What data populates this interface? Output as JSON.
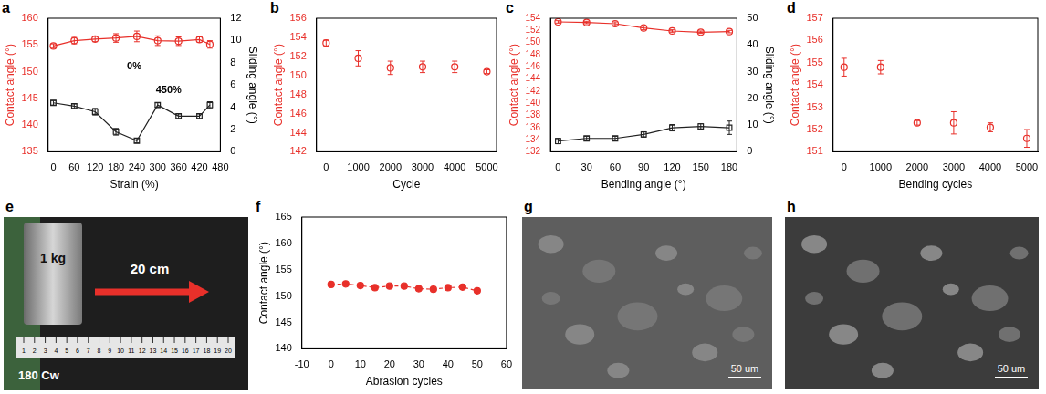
{
  "chart_data": [
    {
      "panel": "a",
      "type": "line",
      "x_label": "Strain (%)",
      "y_label": "Contact angle (°)",
      "y2_label": "Sliding angle (°)",
      "x": [
        0,
        60,
        120,
        180,
        240,
        300,
        360,
        420,
        450
      ],
      "xlim": [
        -15,
        480
      ],
      "xticks": [
        0,
        60,
        120,
        180,
        240,
        300,
        360,
        420,
        480
      ],
      "ylim": [
        135,
        160
      ],
      "yticks": [
        135,
        140,
        145,
        150,
        155,
        160
      ],
      "y2lim": [
        0,
        12
      ],
      "y2ticks": [
        0,
        2,
        4,
        6,
        8,
        10,
        12
      ],
      "grid": false,
      "annotations": [
        "0%",
        "450%"
      ],
      "series": [
        {
          "color": "#e8302a",
          "marker": "open_circle",
          "line_style": "solid",
          "values": [
            154.8,
            155.8,
            156.1,
            156.3,
            156.6,
            155.8,
            155.7,
            156.0,
            155.1
          ],
          "errors": [
            0.4,
            0.6,
            0.5,
            0.8,
            1.0,
            0.9,
            0.8,
            0.5,
            0.7
          ]
        },
        {
          "axis": "y2",
          "color": "#222222",
          "marker": "open_square",
          "line_style": "solid",
          "values": [
            4.4,
            4.1,
            3.6,
            1.8,
            1.0,
            4.2,
            3.2,
            3.2,
            4.2
          ],
          "errors": [
            0.2,
            0.2,
            0.3,
            0.3,
            0.2,
            0.2,
            0.2,
            0.2,
            0.3
          ]
        }
      ]
    },
    {
      "panel": "b",
      "type": "scatter",
      "x_label": "Cycle",
      "y_label": "Contact angle (°)",
      "x": [
        0,
        1000,
        2000,
        3000,
        4000,
        5000
      ],
      "xlim": [
        -300,
        5300
      ],
      "xticks": [
        0,
        1000,
        2000,
        3000,
        4000,
        5000
      ],
      "ylim": [
        142,
        156
      ],
      "yticks": [
        142,
        144,
        146,
        148,
        150,
        152,
        154,
        156
      ],
      "grid": false,
      "series": [
        {
          "color": "#e8302a",
          "marker": "open_circle",
          "line_style": "none",
          "values": [
            153.4,
            151.8,
            150.8,
            150.9,
            150.9,
            150.4
          ],
          "errors": [
            0.3,
            0.8,
            0.7,
            0.6,
            0.6,
            0.2
          ]
        }
      ]
    },
    {
      "panel": "c",
      "type": "line",
      "x_label": "Bending angle (°)",
      "y_label": "Contact angle (°)",
      "y2_label": "Sliding angle (°)",
      "x": [
        0,
        30,
        60,
        90,
        120,
        150,
        180
      ],
      "xlim": [
        -8,
        188
      ],
      "xticks": [
        0,
        30,
        60,
        90,
        120,
        150,
        180
      ],
      "ylim": [
        132,
        154
      ],
      "yticks": [
        132,
        134,
        136,
        138,
        140,
        142,
        144,
        146,
        148,
        150,
        152,
        154
      ],
      "y2lim": [
        0,
        50
      ],
      "y2ticks": [
        0,
        10,
        20,
        30,
        40,
        50
      ],
      "grid": false,
      "series": [
        {
          "color": "#e8302a",
          "marker": "open_circle",
          "line_style": "solid",
          "values": [
            153.4,
            153.3,
            153.1,
            152.4,
            151.9,
            151.7,
            151.8
          ],
          "errors": [
            0.2,
            0.2,
            0.3,
            0.3,
            0.2,
            0.2,
            0.2
          ]
        },
        {
          "axis": "y2",
          "color": "#222222",
          "marker": "open_square",
          "line_style": "solid",
          "values": [
            4,
            5,
            5,
            6.5,
            9,
            9.5,
            9
          ],
          "errors": [
            1.0,
            0.8,
            0.8,
            1.0,
            1.2,
            1.0,
            2.5
          ]
        }
      ]
    },
    {
      "panel": "d",
      "type": "scatter",
      "x_label": "Bending cycles",
      "y_label": "Contact angle (°)",
      "x": [
        0,
        1000,
        2000,
        3000,
        4000,
        5000
      ],
      "xlim": [
        -300,
        5300
      ],
      "xticks": [
        0,
        1000,
        2000,
        3000,
        4000,
        5000
      ],
      "ylim": [
        151,
        157
      ],
      "yticks": [
        151,
        152,
        153,
        154,
        155,
        156,
        157
      ],
      "grid": false,
      "series": [
        {
          "color": "#e8302a",
          "marker": "open_circle",
          "line_style": "none",
          "values": [
            154.8,
            154.8,
            152.3,
            152.3,
            152.1,
            151.6
          ],
          "errors": [
            0.4,
            0.3,
            0.1,
            0.5,
            0.2,
            0.4
          ]
        }
      ]
    },
    {
      "panel": "f",
      "type": "line",
      "x_label": "Abrasion cycles",
      "y_label": "Contact angle (°)",
      "x": [
        0,
        5,
        10,
        15,
        20,
        25,
        30,
        35,
        40,
        45,
        50
      ],
      "xlim": [
        -10,
        60
      ],
      "xticks": [
        -10,
        0,
        10,
        20,
        30,
        40,
        50,
        60
      ],
      "ylim": [
        140,
        165
      ],
      "yticks": [
        140,
        145,
        150,
        155,
        160,
        165
      ],
      "grid": false,
      "series": [
        {
          "color": "#e8302a",
          "marker": "circle",
          "line_style": "dashed",
          "values": [
            152.2,
            152.3,
            152.0,
            151.6,
            151.9,
            151.9,
            151.4,
            151.3,
            151.6,
            151.7,
            151.0
          ]
        }
      ]
    }
  ],
  "images": [
    {
      "panel": "e",
      "type": "photo",
      "texts": [
        "1 kg",
        "20 cm",
        "180 Cw"
      ],
      "ruler_labels": [
        1,
        2,
        3,
        4,
        5,
        6,
        7,
        8,
        9,
        10,
        11,
        12,
        13,
        14,
        15,
        16,
        17,
        18,
        19,
        20
      ]
    },
    {
      "panel": "g",
      "type": "sem",
      "scale_bar": "50 um"
    },
    {
      "panel": "h",
      "type": "sem",
      "scale_bar": "50 um"
    }
  ]
}
